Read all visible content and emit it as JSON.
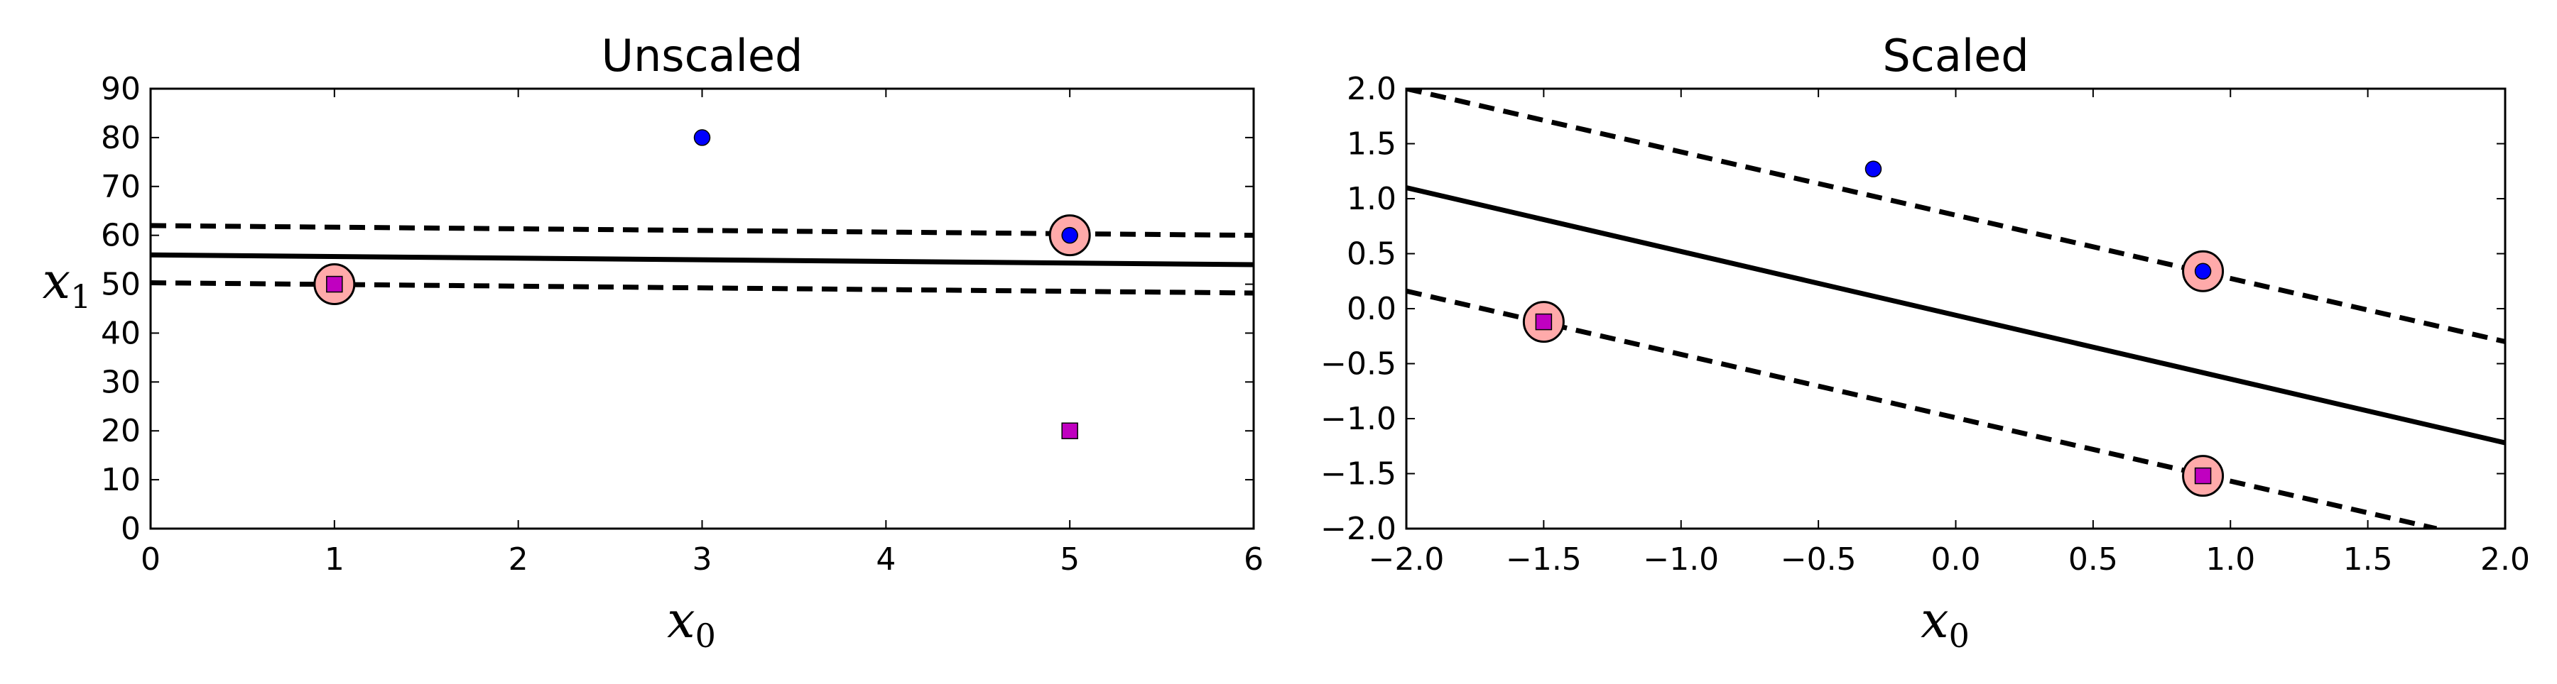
{
  "chart_data": [
    {
      "type": "scatter",
      "title": "Unscaled",
      "xlabel": "x",
      "xlabel_sub": "0",
      "ylabel": "x",
      "ylabel_sub": "1",
      "xlim": [
        0,
        6
      ],
      "ylim": [
        0,
        90
      ],
      "xticks": [
        0,
        1,
        2,
        3,
        4,
        5,
        6
      ],
      "xtick_labels": [
        "0",
        "1",
        "2",
        "3",
        "4",
        "5",
        "6"
      ],
      "yticks": [
        0,
        10,
        20,
        30,
        40,
        50,
        60,
        70,
        80,
        90
      ],
      "ytick_labels": [
        "0",
        "10",
        "20",
        "30",
        "40",
        "50",
        "60",
        "70",
        "80",
        "90"
      ],
      "grid": false,
      "series": [
        {
          "kind": "points",
          "marker": "circle",
          "color": "#0000ff",
          "points": [
            [
              3,
              80
            ],
            [
              5,
              60
            ]
          ]
        },
        {
          "kind": "points",
          "marker": "square",
          "color": "#c000c0",
          "points": [
            [
              1,
              50
            ],
            [
              5,
              20
            ]
          ]
        },
        {
          "kind": "support_vectors",
          "marker": "ring",
          "color": "#ffaaaa",
          "points": [
            [
              1,
              50
            ],
            [
              5,
              60
            ]
          ]
        },
        {
          "kind": "line",
          "style": "solid",
          "color": "#000000",
          "points": [
            [
              0,
              56
            ],
            [
              6,
              54
            ]
          ]
        },
        {
          "kind": "line",
          "style": "dashed",
          "color": "#000000",
          "points": [
            [
              0,
              62
            ],
            [
              6,
              60
            ]
          ]
        },
        {
          "kind": "line",
          "style": "dashed",
          "color": "#000000",
          "points": [
            [
              0,
              50.3
            ],
            [
              6,
              48.2
            ]
          ]
        }
      ]
    },
    {
      "type": "scatter",
      "title": "Scaled",
      "xlabel": "x",
      "xlabel_sub": "0",
      "xlim": [
        -2,
        2
      ],
      "ylim": [
        -2,
        2
      ],
      "xticks": [
        -2,
        -1.5,
        -1,
        -0.5,
        0,
        0.5,
        1,
        1.5,
        2
      ],
      "xtick_labels": [
        "−2.0",
        "−1.5",
        "−1.0",
        "−0.5",
        "0.0",
        "0.5",
        "1.0",
        "1.5",
        "2.0"
      ],
      "yticks": [
        -2,
        -1.5,
        -1,
        -0.5,
        0,
        0.5,
        1,
        1.5,
        2
      ],
      "ytick_labels": [
        "−2.0",
        "−1.5",
        "−1.0",
        "−0.5",
        "0.0",
        "0.5",
        "1.0",
        "1.5",
        "2.0"
      ],
      "grid": false,
      "series": [
        {
          "kind": "points",
          "marker": "circle",
          "color": "#0000ff",
          "points": [
            [
              -0.3,
              1.27
            ],
            [
              0.9,
              0.34
            ]
          ]
        },
        {
          "kind": "points",
          "marker": "square",
          "color": "#c000c0",
          "points": [
            [
              -1.5,
              -0.12
            ],
            [
              0.9,
              -1.52
            ]
          ]
        },
        {
          "kind": "support_vectors",
          "marker": "ring",
          "color": "#ffaaaa",
          "points": [
            [
              -1.5,
              -0.12
            ],
            [
              0.9,
              0.34
            ],
            [
              0.9,
              -1.52
            ]
          ]
        },
        {
          "kind": "line",
          "style": "solid",
          "color": "#000000",
          "points": [
            [
              -2,
              1.1
            ],
            [
              2,
              -1.22
            ]
          ]
        },
        {
          "kind": "line",
          "style": "dashed",
          "color": "#000000",
          "points": [
            [
              -2,
              2.0
            ],
            [
              2,
              -0.3
            ]
          ]
        },
        {
          "kind": "line",
          "style": "dashed",
          "color": "#000000",
          "points": [
            [
              -2,
              0.16
            ],
            [
              1.75,
              -2.0
            ]
          ]
        }
      ]
    }
  ]
}
